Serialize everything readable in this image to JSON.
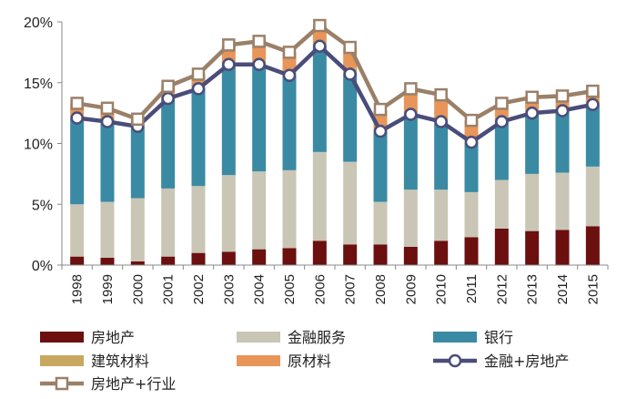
{
  "chart_data": {
    "type": "bar",
    "stacked": true,
    "title": "",
    "xlabel": "",
    "ylabel": "",
    "ylim": [
      0,
      20
    ],
    "y_ticks": [
      "0%",
      "5%",
      "10%",
      "15%",
      "20%"
    ],
    "categories": [
      "1998",
      "1999",
      "2000",
      "2001",
      "2002",
      "2003",
      "2004",
      "2005",
      "2006",
      "2007",
      "2008",
      "2009",
      "2010",
      "2011",
      "2012",
      "2013",
      "2014",
      "2015"
    ],
    "series": [
      {
        "name": "房地产",
        "kind": "bar",
        "color": "#6b0f0f",
        "values": [
          0.7,
          0.6,
          0.3,
          0.7,
          1.0,
          1.1,
          1.3,
          1.4,
          2.0,
          1.7,
          1.7,
          1.5,
          2.0,
          2.3,
          3.0,
          2.8,
          2.9,
          3.2
        ]
      },
      {
        "name": "金融服务",
        "kind": "bar",
        "color": "#c9c6b6",
        "values": [
          4.3,
          4.6,
          5.2,
          5.6,
          5.5,
          6.3,
          6.4,
          6.4,
          7.3,
          6.8,
          3.5,
          4.7,
          4.2,
          3.7,
          4.0,
          4.7,
          4.7,
          4.9
        ]
      },
      {
        "name": "银行",
        "kind": "bar",
        "color": "#3a8aa3",
        "values": [
          7.1,
          6.6,
          5.9,
          7.3,
          8.0,
          9.1,
          8.7,
          7.8,
          8.7,
          7.2,
          5.8,
          6.2,
          5.6,
          4.1,
          4.9,
          5.0,
          5.1,
          5.1
        ]
      },
      {
        "name": "建筑材料",
        "kind": "bar",
        "color": "#c8a860",
        "values": [
          0.3,
          0.3,
          0.2,
          0.3,
          0.3,
          0.4,
          0.4,
          0.4,
          0.5,
          0.5,
          0.2,
          0.3,
          0.3,
          0.2,
          0.3,
          0.3,
          0.2,
          0.3
        ]
      },
      {
        "name": "原材料",
        "kind": "bar",
        "color": "#e8955a",
        "values": [
          0.9,
          0.8,
          0.4,
          0.9,
          0.9,
          1.2,
          1.5,
          1.5,
          1.2,
          1.7,
          1.5,
          1.8,
          1.8,
          1.6,
          1.0,
          1.0,
          1.0,
          0.8
        ]
      },
      {
        "name": "金融+房地产",
        "kind": "line",
        "color": "#4a4d7a",
        "values": [
          12.1,
          11.8,
          11.4,
          13.7,
          14.5,
          16.5,
          16.5,
          15.6,
          18.0,
          15.7,
          11.0,
          12.4,
          11.8,
          10.1,
          11.8,
          12.5,
          12.7,
          13.2
        ]
      },
      {
        "name": "房地产+行业",
        "kind": "line",
        "color": "#9a8068",
        "values": [
          13.3,
          12.9,
          12.0,
          14.7,
          15.7,
          18.1,
          18.4,
          17.5,
          19.7,
          17.9,
          12.8,
          14.5,
          14.0,
          11.9,
          13.3,
          13.8,
          13.9,
          14.3
        ]
      }
    ],
    "legend": {
      "position": "bottom",
      "columns": 3
    }
  }
}
